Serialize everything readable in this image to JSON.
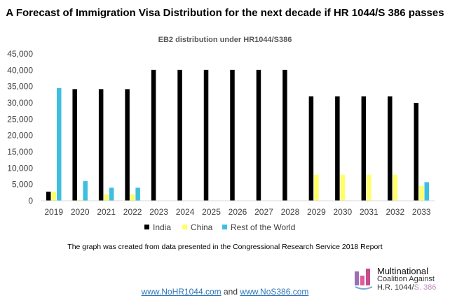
{
  "title": "A Forecast of Immigration Visa Distribution for the next decade if HR 1044/S 386 passes",
  "note": "The graph was created from data presented in the Congressional Research Service 2018 Report",
  "logo": {
    "line1": "Multinational",
    "line2": "Coalition Against",
    "line3a": "H.R. 1044/",
    "line3b": "S. 386"
  },
  "links": {
    "link1": "www.NoHR1044.com",
    "and": "and",
    "link2": "www.NoS386.com"
  },
  "colors": {
    "India": "#000000",
    "China": "#ffff66",
    "Rest of the World": "#3fbfe0"
  },
  "chart_data": {
    "type": "bar",
    "title": "EB2 distribution under HR1044/S386",
    "categories": [
      "2019",
      "2020",
      "2021",
      "2022",
      "2023",
      "2024",
      "2025",
      "2026",
      "2027",
      "2028",
      "2029",
      "2030",
      "2031",
      "2032",
      "2033"
    ],
    "ylim": [
      0,
      45000
    ],
    "yticks": [
      0,
      5000,
      10000,
      15000,
      20000,
      25000,
      30000,
      35000,
      40000,
      45000
    ],
    "ytick_labels": [
      "0",
      "5,000",
      "10,000",
      "15,000",
      "20,000",
      "25,000",
      "30,000",
      "35,000",
      "40,000",
      "45,000"
    ],
    "legend_position": "bottom",
    "grid": false,
    "series": [
      {
        "name": "India",
        "values": [
          2800,
          34200,
          34200,
          34200,
          40100,
          40100,
          40100,
          40100,
          40100,
          40100,
          32000,
          32000,
          32000,
          32000,
          30000
        ]
      },
      {
        "name": "China",
        "values": [
          2800,
          300,
          2000,
          2000,
          0,
          0,
          0,
          0,
          0,
          0,
          8000,
          8000,
          8000,
          8000,
          4500
        ]
      },
      {
        "name": "Rest of the World",
        "values": [
          34500,
          6000,
          4000,
          4000,
          0,
          0,
          0,
          0,
          0,
          0,
          0,
          0,
          0,
          0,
          5700
        ]
      }
    ]
  }
}
